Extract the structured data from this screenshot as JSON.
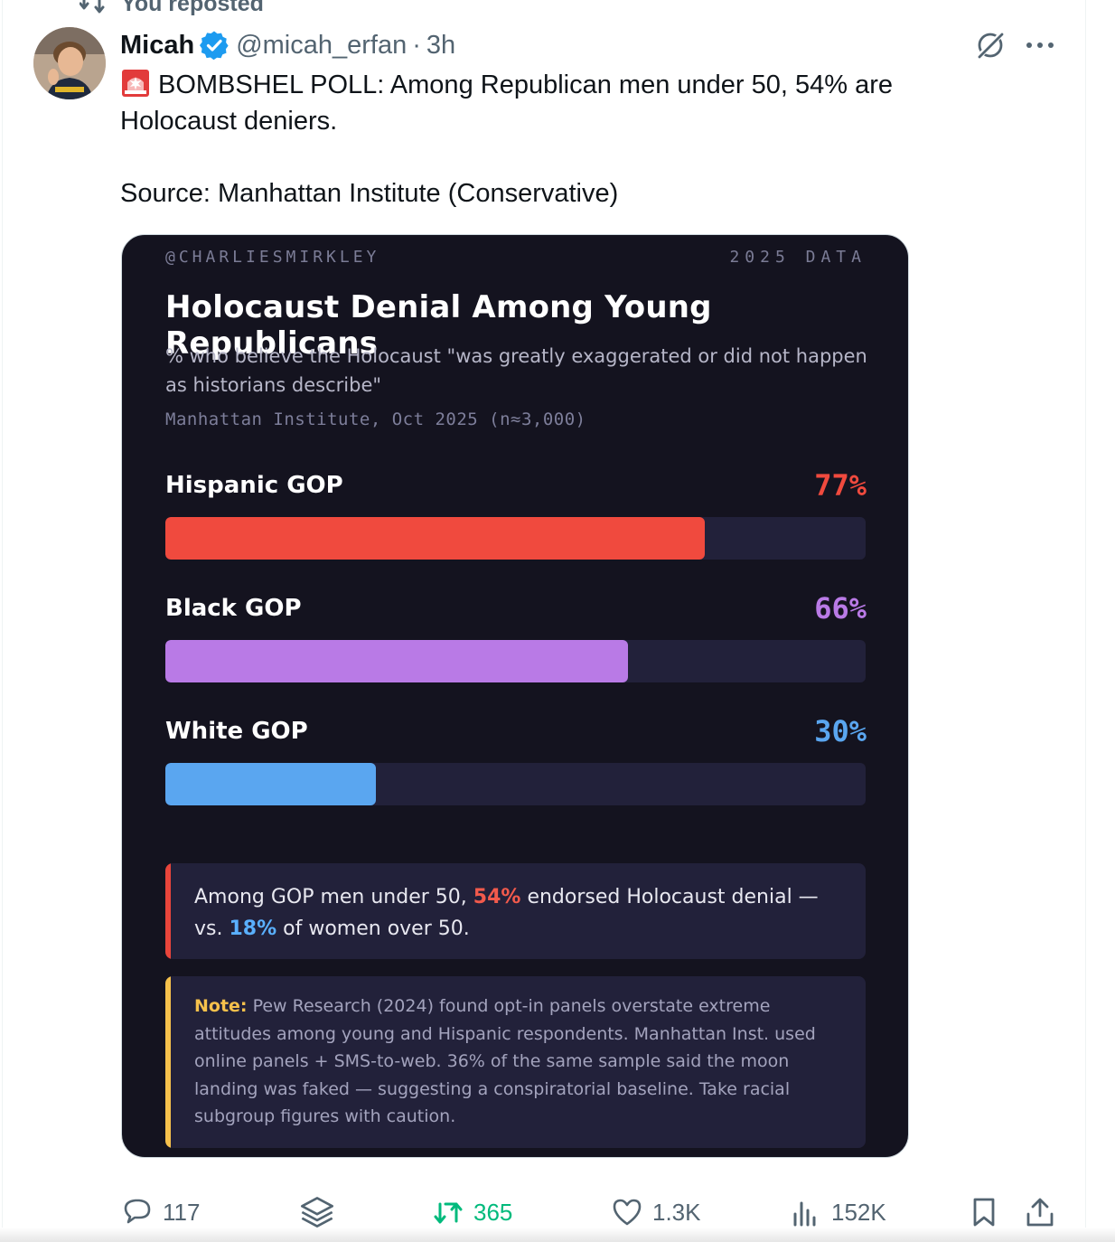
{
  "repost": {
    "label": "You reposted"
  },
  "author": {
    "name": "Micah",
    "handle": "@micah_erfan",
    "separator": "·",
    "time": "3h"
  },
  "post": {
    "text": "BOMBSHEL POLL: Among Republican men under 50, 54% are Holocaust deniers.",
    "source": "Source: Manhattan Institute (Conservative)"
  },
  "card": {
    "handle": "@CHARLIESMIRKLEY",
    "year_tag": "2025 DATA",
    "title": "Holocaust Denial Among Young Republicans",
    "subtitle": "% who believe the Holocaust \"was greatly exaggerated or did not happen as historians describe\"",
    "source": "Manhattan Institute, Oct 2025 (n≈3,000)",
    "callout": {
      "pre": "Among GOP men under 50, ",
      "hl1": "54%",
      "mid": " endorsed Holocaust denial — vs. ",
      "hl2": "18%",
      "post": " of women over 50."
    },
    "note": {
      "label": "Note:",
      "text": " Pew Research (2024) found opt-in panels overstate extreme attitudes among young and Hispanic respondents. Manhattan Inst. used online panels + SMS-to-web. 36% of the same sample said the moon landing was faked — suggesting a conspiratorial baseline. Take racial subgroup figures with caution."
    }
  },
  "chart_data": {
    "type": "bar",
    "orientation": "horizontal",
    "categories": [
      "Hispanic GOP",
      "Black GOP",
      "White GOP"
    ],
    "values": [
      77,
      66,
      30
    ],
    "value_labels": [
      "77%",
      "66%",
      "30%"
    ],
    "colors": [
      "#f04a3e",
      "#b97ae6",
      "#5aa6f0"
    ],
    "title": "Holocaust Denial Among Young Republicans",
    "xlim": [
      0,
      100
    ]
  },
  "actions": {
    "replies": "117",
    "retweets": "365",
    "likes": "1.3K",
    "views": "152K"
  },
  "colors": {
    "verified": "#1d9bf0",
    "retweet": "#00ba7c",
    "card_bg": "#14131f",
    "track": "#22213a",
    "callout_red": "#e9453b",
    "note_yellow": "#f6c14c"
  }
}
